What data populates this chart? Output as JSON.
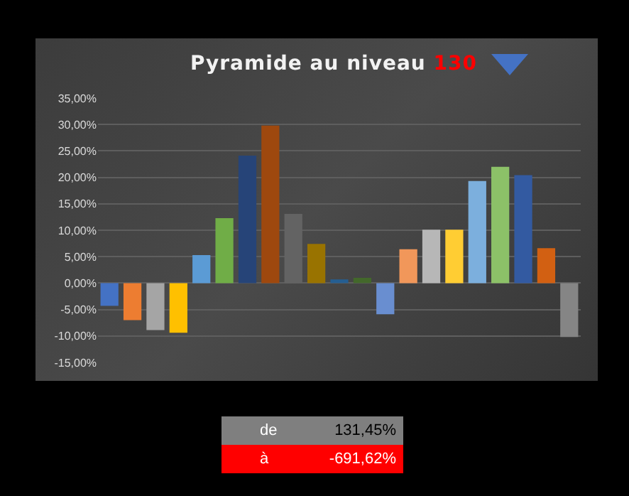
{
  "chart_data": {
    "type": "bar",
    "title": "Pyramide au niveau 130",
    "categories": [
      null,
      null,
      null,
      null,
      null,
      null,
      null,
      null,
      null,
      null,
      null,
      null,
      null,
      null,
      null,
      null,
      null,
      null,
      null,
      null,
      null
    ],
    "values": [
      -4.3,
      -7.0,
      -8.9,
      -9.4,
      5.3,
      12.3,
      24.1,
      29.8,
      13.1,
      7.4,
      0.7,
      1.0,
      -5.9,
      6.4,
      10.1,
      10.1,
      19.3,
      22.0,
      20.4,
      6.6,
      -10.2
    ],
    "colors": [
      "#4472c4",
      "#ed7d31",
      "#a5a5a5",
      "#ffc000",
      "#5b9bd5",
      "#70ad47",
      "#264478",
      "#9e480e",
      "#636363",
      "#997300",
      "#255e91",
      "#43682b",
      "#698ed0",
      "#f1975a",
      "#b7b7b7",
      "#ffcd33",
      "#7cafdd",
      "#8cc168",
      "#335aa1",
      "#d26012",
      "#858585"
    ],
    "ylim": [
      -15,
      35
    ],
    "yticks": [
      {
        "value": -15,
        "label": "-15,00%"
      },
      {
        "value": -10,
        "label": "-10,00%"
      },
      {
        "value": -5,
        "label": "-5,00%"
      },
      {
        "value": 0,
        "label": "0,00%"
      },
      {
        "value": 5,
        "label": "5,00%"
      },
      {
        "value": 10,
        "label": "10,00%"
      },
      {
        "value": 15,
        "label": "15,00%"
      },
      {
        "value": 20,
        "label": "20,00%"
      },
      {
        "value": 25,
        "label": "25,00%"
      },
      {
        "value": 30,
        "label": "30,00%"
      },
      {
        "value": 35,
        "label": "35,00%"
      }
    ],
    "grid": true,
    "annotations": [
      "de",
      "131,45%",
      "à",
      "-691,62%"
    ]
  }
}
